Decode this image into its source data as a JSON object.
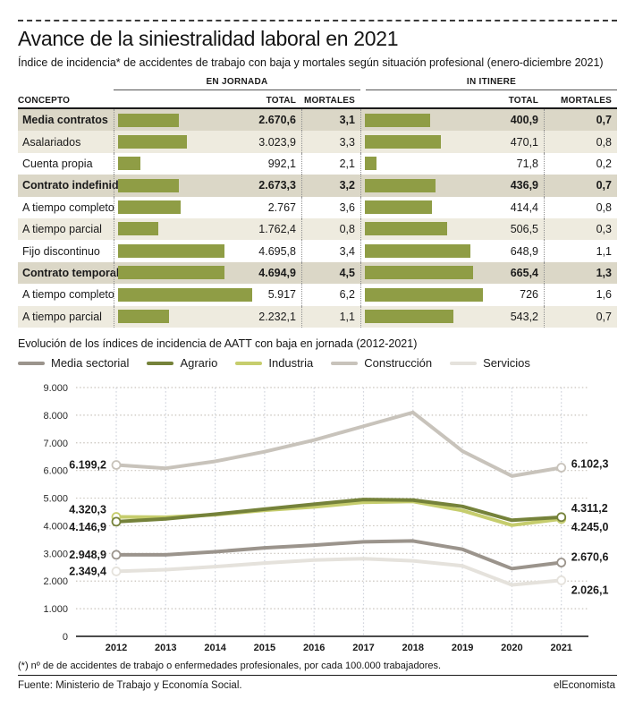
{
  "header": {
    "title": "Avance de la siniestralidad laboral en 2021",
    "subtitle": "Índice de incidencia* de accidentes de trabajo con baja y mortales según situación profesional (enero-diciembre 2021)"
  },
  "table": {
    "concept_header": "CONCEPTO",
    "group_headers": [
      "EN JORNADA",
      "IN ITINERE"
    ],
    "sub_headers": [
      "TOTAL",
      "MORTALES",
      "TOTAL",
      "MORTALES"
    ],
    "jornada_bar_max": 5917,
    "itinere_bar_max": 726,
    "bar_color": "#8f9d45",
    "rows": [
      {
        "concepto": "Media contratos",
        "bold": true,
        "shade": "dark",
        "jornada_total": "2.670,6",
        "jornada_value": 2670.6,
        "jornada_mortales": "3,1",
        "itinere_total": "400,9",
        "itinere_value": 400.9,
        "itinere_mortales": "0,7"
      },
      {
        "concepto": "Asalariados",
        "bold": false,
        "shade": "light",
        "jornada_total": "3.023,9",
        "jornada_value": 3023.9,
        "jornada_mortales": "3,3",
        "itinere_total": "470,1",
        "itinere_value": 470.1,
        "itinere_mortales": "0,8"
      },
      {
        "concepto": "Cuenta propia",
        "bold": false,
        "shade": "none",
        "jornada_total": "992,1",
        "jornada_value": 992.1,
        "jornada_mortales": "2,1",
        "itinere_total": "71,8",
        "itinere_value": 71.8,
        "itinere_mortales": "0,2"
      },
      {
        "concepto": "Contrato indefinido",
        "bold": true,
        "shade": "dark",
        "jornada_total": "2.673,3",
        "jornada_value": 2673.3,
        "jornada_mortales": "3,2",
        "itinere_total": "436,9",
        "itinere_value": 436.9,
        "itinere_mortales": "0,7"
      },
      {
        "concepto": "A tiempo completo",
        "bold": false,
        "shade": "none",
        "jornada_total": "2.767",
        "jornada_value": 2767,
        "jornada_mortales": "3,6",
        "itinere_total": "414,4",
        "itinere_value": 414.4,
        "itinere_mortales": "0,8"
      },
      {
        "concepto": "A tiempo parcial",
        "bold": false,
        "shade": "light",
        "jornada_total": "1.762,4",
        "jornada_value": 1762.4,
        "jornada_mortales": "0,8",
        "itinere_total": "506,5",
        "itinere_value": 506.5,
        "itinere_mortales": "0,3"
      },
      {
        "concepto": "Fijo discontinuo",
        "bold": false,
        "shade": "none",
        "jornada_total": "4.695,8",
        "jornada_value": 4695.8,
        "jornada_mortales": "3,4",
        "itinere_total": "648,9",
        "itinere_value": 648.9,
        "itinere_mortales": "1,1"
      },
      {
        "concepto": "Contrato temporal",
        "bold": true,
        "shade": "dark",
        "jornada_total": "4.694,9",
        "jornada_value": 4694.9,
        "jornada_mortales": "4,5",
        "itinere_total": "665,4",
        "itinere_value": 665.4,
        "itinere_mortales": "1,3"
      },
      {
        "concepto": "A tiempo completo",
        "bold": false,
        "shade": "none",
        "jornada_total": "5.917",
        "jornada_value": 5917,
        "jornada_mortales": "6,2",
        "itinere_total": "726",
        "itinere_value": 726,
        "itinere_mortales": "1,6"
      },
      {
        "concepto": "A tiempo parcial",
        "bold": false,
        "shade": "light",
        "jornada_total": "2.232,1",
        "jornada_value": 2232.1,
        "jornada_mortales": "1,1",
        "itinere_total": "543,2",
        "itinere_value": 543.2,
        "itinere_mortales": "0,7"
      }
    ]
  },
  "chart_data": {
    "type": "line",
    "title": "Evolución de los índices de incidencia de AATT con baja en jornada (2012-2021)",
    "x": [
      2012,
      2013,
      2014,
      2015,
      2016,
      2017,
      2018,
      2019,
      2020,
      2021
    ],
    "ylim": [
      0,
      9000
    ],
    "ytick_step": 1000,
    "ytick_labels": [
      "9.000",
      "8.000",
      "7.000",
      "6.000",
      "5.000",
      "4.000",
      "3.000",
      "2.000",
      "1.000",
      "0"
    ],
    "grid": true,
    "legend_position": "top",
    "series": [
      {
        "name": "Media sectorial",
        "color": "#9b948c",
        "values": [
          2948.9,
          2950,
          3060,
          3200,
          3300,
          3420,
          3450,
          3150,
          2450,
          2670.6
        ]
      },
      {
        "name": "Agrario",
        "color": "#75823a",
        "values": [
          4146.9,
          4250,
          4420,
          4600,
          4780,
          4950,
          4930,
          4700,
          4200,
          4311.2
        ]
      },
      {
        "name": "Industria",
        "color": "#c6cd6d",
        "values": [
          4320.3,
          4310,
          4400,
          4560,
          4680,
          4850,
          4880,
          4550,
          4020,
          4245.0
        ]
      },
      {
        "name": "Construcción",
        "color": "#c8c3bb",
        "values": [
          6199.2,
          6080,
          6330,
          6680,
          7100,
          7600,
          8100,
          6700,
          5800,
          6102.3
        ]
      },
      {
        "name": "Servicios",
        "color": "#e5e2dc",
        "values": [
          2349.4,
          2410,
          2520,
          2650,
          2760,
          2810,
          2730,
          2550,
          1860,
          2026.1
        ]
      }
    ],
    "draw_order": [
      "Construcción",
      "Servicios",
      "Media sectorial",
      "Industria",
      "Agrario"
    ],
    "callouts": [
      {
        "text": "6.199,2",
        "series": "Construcción",
        "year": 2012,
        "value": 6199.2,
        "side": "left",
        "dy": 0
      },
      {
        "text": "4.320,3",
        "series": "Industria",
        "year": 2012,
        "value": 4320.3,
        "side": "left",
        "dy": -8
      },
      {
        "text": "4.146,9",
        "series": "Agrario",
        "year": 2012,
        "value": 4146.9,
        "side": "left",
        "dy": 6
      },
      {
        "text": "2.948,9",
        "series": "Media sectorial",
        "year": 2012,
        "value": 2948.9,
        "side": "left",
        "dy": 0
      },
      {
        "text": "2.349,4",
        "series": "Servicios",
        "year": 2012,
        "value": 2349.4,
        "side": "left",
        "dy": 0
      },
      {
        "text": "6.102,3",
        "series": "Construcción",
        "year": 2021,
        "value": 6102.3,
        "side": "right",
        "dy": -4
      },
      {
        "text": "4.311,2",
        "series": "Agrario",
        "year": 2021,
        "value": 4311.2,
        "side": "right",
        "dy": -10
      },
      {
        "text": "4.245,0",
        "series": "Industria",
        "year": 2021,
        "value": 4245.0,
        "side": "right",
        "dy": 9
      },
      {
        "text": "2.670,6",
        "series": "Media sectorial",
        "year": 2021,
        "value": 2670.6,
        "side": "right",
        "dy": -6
      },
      {
        "text": "2.026,1",
        "series": "Servicios",
        "year": 2021,
        "value": 2026.1,
        "side": "right",
        "dy": 11
      }
    ]
  },
  "footer": {
    "footnote": "(*) nº de de accidentes de trabajo o enfermedades profesionales, por cada 100.000 trabajadores.",
    "source": "Fuente: Ministerio de Trabajo y Economía Social.",
    "brand": "elEconomista"
  },
  "colors": {
    "bar_olive": "#8f9d45",
    "row_dark": "#dbd7c7",
    "row_light": "#eeebdf",
    "grid_dotted": "#c9c4bc",
    "year_grid": "#cdd1da",
    "text": "#1a1a1a"
  }
}
